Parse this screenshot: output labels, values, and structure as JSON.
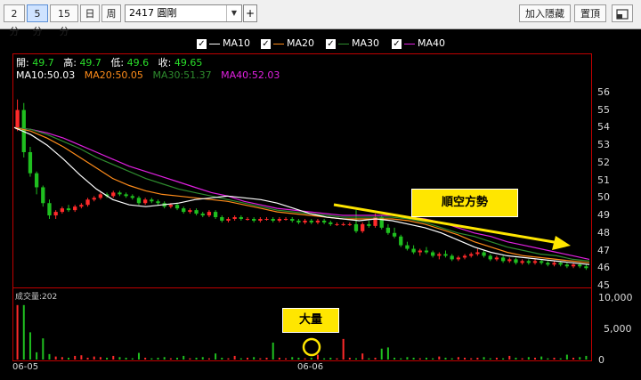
{
  "toolbar": {
    "period_tabs": [
      "2分",
      "5分",
      "15分",
      "日",
      "周"
    ],
    "active_tab": "5分",
    "stock": "2417 圓剛",
    "add_hidden_btn": "加入隱藏",
    "pin_top_btn": "置頂"
  },
  "legend": [
    {
      "label": "MA10",
      "color": "#ffffff"
    },
    {
      "label": "MA20",
      "color": "#ff8c1a"
    },
    {
      "label": "MA30",
      "color": "#2e8b2e"
    },
    {
      "label": "MA40",
      "color": "#e020e0"
    }
  ],
  "ohlc": {
    "open_label": "開:",
    "open": "49.7",
    "high_label": "高:",
    "high": "49.7",
    "low_label": "低:",
    "low": "49.6",
    "close_label": "收:",
    "close": "49.65"
  },
  "ma_values": {
    "ma10": "MA10:50.03",
    "ma20": "MA20:50.05",
    "ma30": "MA30:51.37",
    "ma40": "MA40:52.03"
  },
  "volume_label": "成交量:202",
  "annotations": {
    "trend": "順空方勢",
    "volume": "大量"
  },
  "chart_data": {
    "type": "candlestick",
    "price_axis": {
      "ticks": [
        56,
        55,
        54,
        53,
        52,
        51,
        50,
        49,
        48,
        47,
        46,
        45
      ],
      "range": [
        45,
        56.5
      ]
    },
    "volume_axis": {
      "ticks": [
        "10,000",
        "5,000",
        "0"
      ],
      "range": [
        0,
        10000
      ]
    },
    "x_labels": [
      "06-05",
      "06-06"
    ],
    "candles": [
      [
        53.9,
        55.6,
        53.8,
        55.0
      ],
      [
        55.0,
        55.4,
        52.3,
        52.6
      ],
      [
        52.6,
        52.9,
        51.2,
        51.4
      ],
      [
        51.4,
        51.5,
        50.2,
        50.6
      ],
      [
        50.6,
        50.7,
        49.5,
        49.7
      ],
      [
        49.7,
        49.9,
        48.8,
        49.0
      ],
      [
        49.0,
        49.3,
        48.8,
        49.2
      ],
      [
        49.2,
        49.5,
        49.1,
        49.4
      ],
      [
        49.4,
        49.6,
        49.2,
        49.3
      ],
      [
        49.3,
        49.6,
        49.2,
        49.5
      ],
      [
        49.5,
        49.7,
        49.4,
        49.6
      ],
      [
        49.6,
        50.0,
        49.5,
        49.9
      ],
      [
        49.9,
        50.1,
        49.8,
        50.0
      ],
      [
        50.0,
        50.3,
        49.9,
        50.2
      ],
      [
        50.2,
        50.3,
        50.0,
        50.1
      ],
      [
        50.1,
        50.4,
        50.0,
        50.3
      ],
      [
        50.3,
        50.4,
        50.1,
        50.2
      ],
      [
        50.2,
        50.3,
        50.0,
        50.1
      ],
      [
        50.1,
        50.2,
        49.9,
        50.0
      ],
      [
        50.0,
        50.1,
        49.6,
        49.7
      ],
      [
        49.7,
        50.0,
        49.6,
        49.9
      ],
      [
        49.9,
        50.0,
        49.7,
        49.8
      ],
      [
        49.8,
        49.9,
        49.6,
        49.7
      ],
      [
        49.7,
        49.8,
        49.4,
        49.5
      ],
      [
        49.5,
        49.7,
        49.4,
        49.6
      ],
      [
        49.6,
        49.7,
        49.3,
        49.4
      ],
      [
        49.4,
        49.5,
        49.1,
        49.2
      ],
      [
        49.2,
        49.4,
        49.1,
        49.3
      ],
      [
        49.3,
        49.4,
        49.0,
        49.1
      ],
      [
        49.1,
        49.2,
        48.9,
        49.0
      ],
      [
        49.0,
        49.3,
        48.9,
        49.2
      ],
      [
        49.2,
        49.3,
        48.8,
        48.9
      ],
      [
        48.9,
        49.0,
        48.6,
        48.7
      ],
      [
        48.7,
        48.9,
        48.6,
        48.8
      ],
      [
        48.8,
        49.0,
        48.7,
        48.9
      ],
      [
        48.9,
        49.0,
        48.7,
        48.8
      ],
      [
        48.8,
        48.9,
        48.7,
        48.8
      ],
      [
        48.8,
        48.9,
        48.6,
        48.7
      ],
      [
        48.7,
        48.9,
        48.6,
        48.8
      ],
      [
        48.8,
        48.9,
        48.7,
        48.8
      ],
      [
        48.8,
        48.9,
        48.6,
        48.7
      ],
      [
        48.7,
        48.9,
        48.6,
        48.8
      ],
      [
        48.8,
        48.9,
        48.7,
        48.8
      ],
      [
        48.8,
        48.9,
        48.6,
        48.7
      ],
      [
        48.7,
        48.8,
        48.5,
        48.6
      ],
      [
        48.6,
        48.8,
        48.5,
        48.7
      ],
      [
        48.7,
        48.8,
        48.5,
        48.6
      ],
      [
        48.6,
        48.8,
        48.5,
        48.7
      ],
      [
        48.7,
        48.8,
        48.5,
        48.6
      ],
      [
        48.6,
        48.7,
        48.4,
        48.5
      ],
      [
        48.5,
        48.6,
        48.4,
        48.5
      ],
      [
        48.5,
        48.6,
        48.4,
        48.5
      ],
      [
        48.5,
        48.6,
        48.4,
        48.5
      ],
      [
        48.5,
        49.3,
        48.0,
        48.1
      ],
      [
        48.1,
        48.6,
        48.0,
        48.5
      ],
      [
        48.5,
        48.7,
        48.3,
        48.4
      ],
      [
        48.4,
        49.1,
        48.3,
        48.9
      ],
      [
        48.9,
        49.0,
        48.2,
        48.3
      ],
      [
        48.3,
        48.5,
        47.9,
        48.0
      ],
      [
        48.0,
        48.3,
        47.7,
        47.8
      ],
      [
        47.8,
        47.9,
        47.2,
        47.3
      ],
      [
        47.3,
        47.5,
        47.0,
        47.1
      ],
      [
        47.1,
        47.3,
        46.8,
        46.9
      ],
      [
        46.9,
        47.1,
        46.7,
        47.0
      ],
      [
        47.0,
        47.2,
        46.8,
        46.9
      ],
      [
        46.9,
        47.0,
        46.6,
        46.7
      ],
      [
        46.7,
        46.9,
        46.5,
        46.8
      ],
      [
        46.8,
        47.0,
        46.6,
        46.7
      ],
      [
        46.7,
        46.8,
        46.4,
        46.5
      ],
      [
        46.5,
        46.7,
        46.4,
        46.6
      ],
      [
        46.6,
        46.8,
        46.5,
        46.7
      ],
      [
        46.7,
        46.9,
        46.6,
        46.8
      ],
      [
        46.8,
        47.1,
        46.7,
        46.9
      ],
      [
        46.9,
        47.0,
        46.6,
        46.7
      ],
      [
        46.7,
        46.8,
        46.4,
        46.5
      ],
      [
        46.5,
        46.7,
        46.4,
        46.6
      ],
      [
        46.6,
        46.7,
        46.3,
        46.4
      ],
      [
        46.4,
        46.6,
        46.3,
        46.5
      ],
      [
        46.5,
        46.6,
        46.2,
        46.3
      ],
      [
        46.3,
        46.5,
        46.2,
        46.4
      ],
      [
        46.4,
        46.5,
        46.2,
        46.3
      ],
      [
        46.3,
        46.5,
        46.2,
        46.4
      ],
      [
        46.4,
        46.5,
        46.2,
        46.3
      ],
      [
        46.3,
        46.4,
        46.1,
        46.2
      ],
      [
        46.2,
        46.4,
        46.1,
        46.3
      ],
      [
        46.3,
        46.4,
        46.1,
        46.2
      ],
      [
        46.2,
        46.3,
        46.0,
        46.1
      ],
      [
        46.1,
        46.3,
        46.0,
        46.2
      ],
      [
        46.2,
        46.3,
        46.0,
        46.1
      ],
      [
        46.1,
        46.2,
        45.9,
        46.0
      ]
    ],
    "volumes": [
      9000,
      9000,
      4500,
      1200,
      3500,
      900,
      500,
      400,
      300,
      600,
      700,
      300,
      500,
      400,
      300,
      600,
      400,
      300,
      200,
      1100,
      300,
      200,
      300,
      400,
      200,
      300,
      600,
      200,
      300,
      400,
      200,
      1000,
      300,
      200,
      600,
      200,
      300,
      400,
      200,
      300,
      2800,
      300,
      200,
      400,
      300,
      200,
      300,
      800,
      200,
      300,
      200,
      3400,
      300,
      200,
      1000,
      200,
      300,
      1800,
      2000,
      300,
      200,
      400,
      300,
      200,
      300,
      200,
      500,
      300,
      200,
      400,
      300,
      200,
      300,
      400,
      200,
      300,
      200,
      600,
      300,
      200,
      400,
      300,
      500,
      200,
      300,
      200,
      800,
      300,
      400,
      600
    ],
    "ma": {
      "MA10": [
        54.0,
        53.6,
        53.0,
        52.2,
        51.3,
        50.5,
        49.9,
        49.6,
        49.5,
        49.6,
        49.7,
        49.9,
        50.0,
        50.1,
        50.0,
        49.9,
        49.7,
        49.4,
        49.1,
        48.9,
        48.8,
        48.7,
        48.8,
        48.7,
        48.5,
        48.3,
        48.0,
        47.6,
        47.2,
        46.9,
        46.7,
        46.6,
        46.5,
        46.4,
        46.3,
        46.2
      ],
      "MA20": [
        54.0,
        53.8,
        53.4,
        52.9,
        52.3,
        51.7,
        51.1,
        50.7,
        50.4,
        50.2,
        50.1,
        50.0,
        49.9,
        49.8,
        49.6,
        49.4,
        49.2,
        49.1,
        49.0,
        48.9,
        48.8,
        48.8,
        48.8,
        48.8,
        48.7,
        48.5,
        48.2,
        47.9,
        47.5,
        47.2,
        46.9,
        46.7,
        46.6,
        46.5,
        46.4,
        46.3
      ],
      "MA30": [
        54.0,
        53.9,
        53.6,
        53.2,
        52.8,
        52.3,
        51.9,
        51.5,
        51.1,
        50.8,
        50.5,
        50.3,
        50.1,
        49.9,
        49.7,
        49.5,
        49.3,
        49.2,
        49.1,
        49.0,
        48.9,
        48.9,
        48.9,
        48.9,
        48.8,
        48.6,
        48.3,
        48.0,
        47.8,
        47.5,
        47.2,
        47.0,
        46.8,
        46.7,
        46.5,
        46.4
      ],
      "MA40": [
        54.0,
        53.9,
        53.7,
        53.4,
        53.0,
        52.6,
        52.2,
        51.8,
        51.5,
        51.2,
        50.9,
        50.6,
        50.3,
        50.1,
        49.8,
        49.6,
        49.4,
        49.3,
        49.2,
        49.1,
        49.0,
        49.0,
        49.0,
        49.0,
        48.9,
        48.8,
        48.6,
        48.3,
        48.0,
        47.8,
        47.5,
        47.3,
        47.1,
        46.9,
        46.7,
        46.5
      ]
    }
  }
}
